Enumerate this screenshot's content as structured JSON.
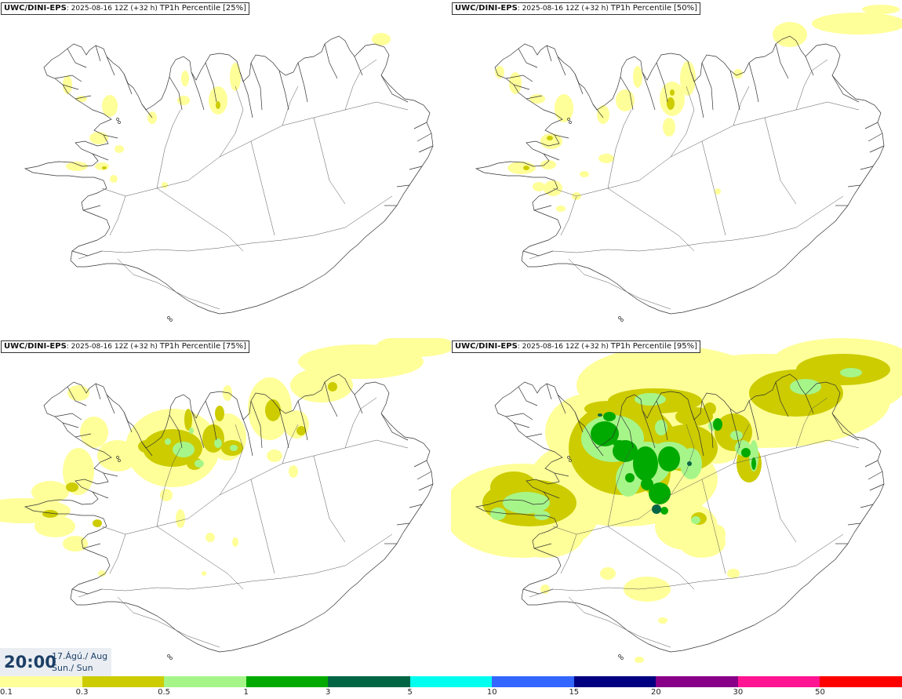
{
  "panels": [
    {
      "model": "UWC/DINI-EPS",
      "info": "2025-08-16 12Z (+32 h)",
      "variable": "TP1h Percentile",
      "percentile": "[25%]"
    },
    {
      "model": "UWC/DINI-EPS",
      "info": "2025-08-16 12Z (+32 h)",
      "variable": "TP1h Percentile",
      "percentile": "[50%]"
    },
    {
      "model": "UWC/DINI-EPS",
      "info": "2025-08-16 12Z (+32 h)",
      "variable": "TP1h Percentile",
      "percentile": "[75%]"
    },
    {
      "model": "UWC/DINI-EPS",
      "info": "2025-08-16 12Z (+32 h)",
      "variable": "TP1h Percentile",
      "percentile": "[95%]"
    }
  ],
  "valid_time": {
    "time": "20:00",
    "date": "17.Ágú./ Aug",
    "day": "Sun./ Sun"
  },
  "legend": {
    "colors": [
      "#ffff99",
      "#cccc00",
      "#a6f589",
      "#00aa00",
      "#006644",
      "#00ffee",
      "#3366ff",
      "#000080",
      "#880088",
      "#ff1493",
      "#ff0000"
    ],
    "labels": [
      "0.1",
      "0.3",
      "0.5",
      "1",
      "3",
      "5",
      "10",
      "15",
      "20",
      "30",
      "50"
    ]
  }
}
